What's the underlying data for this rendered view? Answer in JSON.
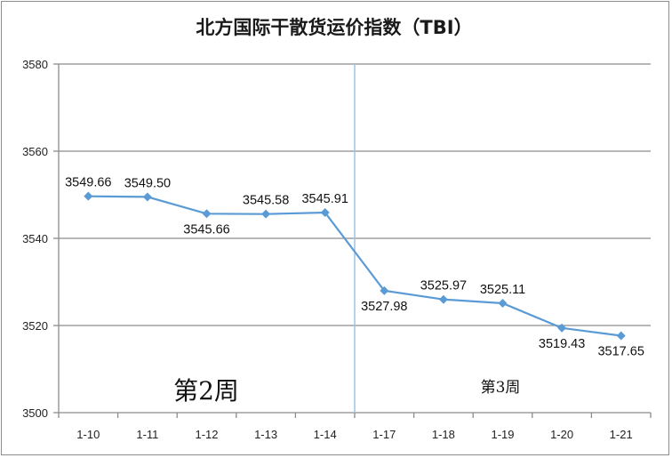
{
  "chart_data": {
    "type": "line",
    "title": "北方国际干散货运价指数（TBI）",
    "categories": [
      "1-10",
      "1-11",
      "1-12",
      "1-13",
      "1-14",
      "1-17",
      "1-18",
      "1-19",
      "1-20",
      "1-21"
    ],
    "values": [
      3549.66,
      3549.5,
      3545.66,
      3545.58,
      3545.91,
      3527.98,
      3525.97,
      3525.11,
      3519.43,
      3517.65
    ],
    "value_labels": [
      "3549.66",
      "3549.50",
      "3545.66",
      "3545.58",
      "3545.91",
      "3527.98",
      "3525.97",
      "3525.11",
      "3519.43",
      "3517.65"
    ],
    "ylim": [
      3500,
      3580
    ],
    "yticks": [
      3500,
      3520,
      3540,
      3560,
      3580
    ],
    "grid": true,
    "line_color": "#5b9bd5",
    "gridline_color": "#8c8c8c",
    "divider_color": "#9dc3e6",
    "annotations": {
      "week2": "第2周",
      "week3": "第3周"
    }
  }
}
